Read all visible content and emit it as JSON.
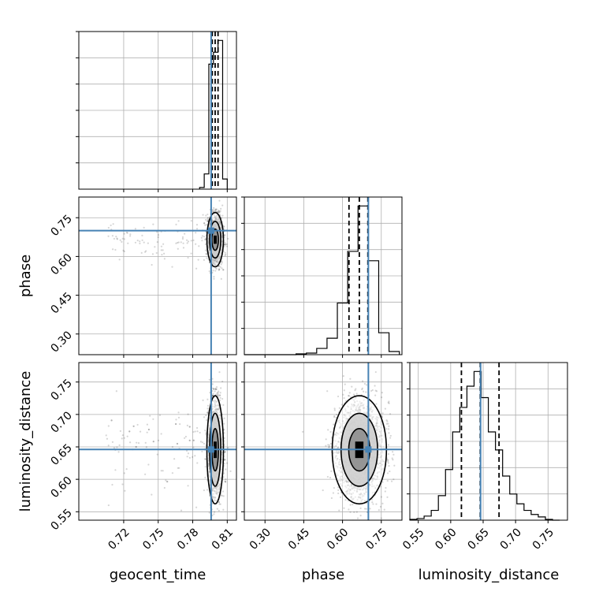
{
  "chart_data": {
    "type": "corner",
    "parameters": [
      "geocent_time",
      "phase",
      "luminosity_distance"
    ],
    "axis_labels": {
      "geocent_time": "geocent_time",
      "phase": "phase",
      "luminosity_distance": "luminosity_distance"
    },
    "ranges": {
      "geocent_time": [
        0.681,
        0.818
      ],
      "phase": [
        0.22,
        0.83
      ],
      "luminosity_distance": [
        0.537,
        0.78
      ]
    },
    "ticks": {
      "geocent_time": [
        "0.72",
        "0.75",
        "0.78",
        "0.81"
      ],
      "phase": [
        "0.30",
        "0.45",
        "0.60",
        "0.75"
      ],
      "luminosity_distance": [
        "0.55",
        "0.60",
        "0.65",
        "0.70",
        "0.75"
      ]
    },
    "truths": {
      "geocent_time": 0.796,
      "phase": 0.7,
      "luminosity_distance": 0.646
    },
    "quantiles": {
      "geocent_time": [
        0.797,
        0.7995,
        0.802
      ],
      "phase": [
        0.625,
        0.665,
        0.698
      ],
      "luminosity_distance": [
        0.6165,
        0.6455,
        0.6745
      ]
    },
    "histograms": {
      "geocent_time": {
        "edges": [
          0.786,
          0.79,
          0.794,
          0.798,
          0.802,
          0.806,
          0.81
        ],
        "counts": [
          2,
          18,
          148,
          162,
          176,
          12
        ]
      },
      "phase": {
        "edges": [
          0.22,
          0.26,
          0.3,
          0.34,
          0.38,
          0.42,
          0.46,
          0.5,
          0.54,
          0.58,
          0.62,
          0.66,
          0.7,
          0.74,
          0.78,
          0.82
        ],
        "counts": [
          0,
          0,
          0,
          0,
          0,
          1,
          2,
          8,
          21,
          66,
          132,
          190,
          120,
          28,
          4
        ]
      },
      "luminosity_distance": {
        "edges": [
          0.537,
          0.548,
          0.559,
          0.57,
          0.581,
          0.592,
          0.603,
          0.614,
          0.625,
          0.636,
          0.647,
          0.658,
          0.669,
          0.68,
          0.691,
          0.702,
          0.713,
          0.724,
          0.735,
          0.746,
          0.757,
          0.768
        ],
        "counts": [
          1,
          2,
          5,
          12,
          30,
          62,
          108,
          138,
          164,
          182,
          150,
          108,
          86,
          54,
          32,
          20,
          12,
          7,
          4,
          1,
          0
        ]
      }
    },
    "contour_levels": [
      "1-sigma",
      "2-sigma",
      "3-sigma"
    ],
    "grid": true,
    "colors": {
      "truth": "#4682b4",
      "hist_line": "#000000",
      "samples": "#000000"
    }
  }
}
